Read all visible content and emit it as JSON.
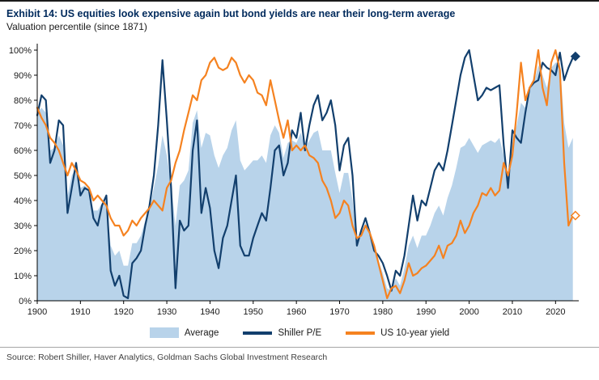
{
  "header": {
    "title": "Exhibit 14: US equities look expensive again but bond yields are near their long-term average",
    "subtitle": "Valuation percentile (since 1871)"
  },
  "legend": {
    "items": [
      {
        "label": "Average",
        "type": "area",
        "color": "#b8d3ea"
      },
      {
        "label": "Shiller P/E",
        "type": "line",
        "color": "#123f6d"
      },
      {
        "label": "US 10-year yield",
        "type": "line",
        "color": "#f58220"
      }
    ]
  },
  "footer": {
    "source": "Source: Robert Shiller, Haver Analytics, Goldman Sachs Global Investment Research"
  },
  "chart_data": {
    "type": "line",
    "title": "Exhibit 14: US equities look expensive again but bond yields are near their long-term average",
    "subtitle": "Valuation percentile (since 1871)",
    "xlabel": "",
    "ylabel": "Valuation percentile",
    "xlim": [
      1900,
      2025
    ],
    "ylim": [
      0,
      100
    ],
    "x_ticks": [
      1900,
      1910,
      1920,
      1930,
      1940,
      1950,
      1960,
      1970,
      1980,
      1990,
      2000,
      2010,
      2020
    ],
    "y_ticks": [
      0,
      10,
      20,
      30,
      40,
      50,
      60,
      70,
      80,
      90,
      100
    ],
    "y_tick_suffix": "%",
    "grid": false,
    "legend_position": "bottom",
    "x": [
      1900,
      1901,
      1902,
      1903,
      1904,
      1905,
      1906,
      1907,
      1908,
      1909,
      1910,
      1911,
      1912,
      1913,
      1914,
      1915,
      1916,
      1917,
      1918,
      1919,
      1920,
      1921,
      1922,
      1923,
      1924,
      1925,
      1926,
      1927,
      1928,
      1929,
      1930,
      1931,
      1932,
      1933,
      1934,
      1935,
      1936,
      1937,
      1938,
      1939,
      1940,
      1941,
      1942,
      1943,
      1944,
      1945,
      1946,
      1947,
      1948,
      1949,
      1950,
      1951,
      1952,
      1953,
      1954,
      1955,
      1956,
      1957,
      1958,
      1959,
      1960,
      1961,
      1962,
      1963,
      1964,
      1965,
      1966,
      1967,
      1968,
      1969,
      1970,
      1971,
      1972,
      1973,
      1974,
      1975,
      1976,
      1977,
      1978,
      1979,
      1980,
      1981,
      1982,
      1983,
      1984,
      1985,
      1986,
      1987,
      1988,
      1989,
      1990,
      1991,
      1992,
      1993,
      1994,
      1995,
      1996,
      1997,
      1998,
      1999,
      2000,
      2001,
      2002,
      2003,
      2004,
      2005,
      2006,
      2007,
      2008,
      2009,
      2010,
      2011,
      2012,
      2013,
      2014,
      2015,
      2016,
      2017,
      2018,
      2019,
      2020,
      2021,
      2022,
      2023,
      2024
    ],
    "series": [
      {
        "name": "Average",
        "style": "area",
        "color": "#b8d3ea",
        "values": [
          75,
          77,
          75,
          60,
          61,
          66,
          62,
          42,
          50,
          53,
          45,
          46,
          44,
          36,
          36,
          39,
          40,
          22,
          18,
          20,
          14,
          14,
          23,
          23,
          26,
          32,
          37,
          45,
          54,
          66,
          58,
          46,
          30,
          46,
          48,
          52,
          71,
          76,
          61,
          67,
          66,
          58,
          53,
          58,
          61,
          68,
          72,
          56,
          52,
          54,
          56,
          56,
          58,
          55,
          66,
          70,
          67,
          57,
          63,
          64,
          63,
          67,
          61,
          64,
          67,
          68,
          60,
          60,
          60,
          51,
          43,
          51,
          51,
          40,
          23,
          27,
          31,
          27,
          21,
          16,
          11,
          5,
          4,
          9,
          6,
          13,
          22,
          26,
          21,
          26,
          26,
          30,
          35,
          38,
          34,
          41,
          46,
          53,
          61,
          62,
          65,
          62,
          59,
          62,
          63,
          64,
          63,
          65,
          58,
          47,
          63,
          70,
          79,
          77,
          85,
          87,
          94,
          90,
          85,
          93,
          95,
          95,
          71,
          61,
          65
        ]
      },
      {
        "name": "Shiller P/E",
        "style": "line",
        "color": "#123f6d",
        "values": [
          74,
          82,
          80,
          55,
          60,
          72,
          70,
          35,
          45,
          55,
          42,
          45,
          44,
          33,
          30,
          38,
          42,
          12,
          6,
          10,
          2,
          1,
          15,
          17,
          20,
          30,
          38,
          50,
          70,
          96,
          72,
          45,
          5,
          32,
          28,
          30,
          60,
          72,
          35,
          45,
          37,
          20,
          13,
          25,
          30,
          40,
          50,
          22,
          18,
          18,
          25,
          30,
          35,
          32,
          45,
          60,
          62,
          50,
          55,
          68,
          65,
          75,
          60,
          70,
          78,
          82,
          72,
          75,
          80,
          70,
          52,
          62,
          65,
          50,
          22,
          28,
          33,
          27,
          20,
          18,
          15,
          10,
          4,
          12,
          10,
          18,
          30,
          42,
          32,
          40,
          38,
          45,
          52,
          55,
          52,
          60,
          70,
          80,
          90,
          97,
          100,
          90,
          80,
          82,
          85,
          84,
          85,
          86,
          62,
          45,
          68,
          65,
          63,
          75,
          85,
          87,
          88,
          95,
          93,
          92,
          90,
          99,
          88,
          93,
          97
        ]
      },
      {
        "name": "US 10-year yield",
        "style": "line",
        "color": "#f58220",
        "values": [
          77,
          73,
          70,
          65,
          63,
          60,
          55,
          50,
          55,
          52,
          48,
          47,
          45,
          40,
          42,
          40,
          38,
          33,
          30,
          30,
          26,
          28,
          32,
          30,
          33,
          35,
          37,
          40,
          38,
          36,
          45,
          48,
          55,
          60,
          68,
          75,
          82,
          80,
          88,
          90,
          95,
          97,
          93,
          92,
          93,
          97,
          95,
          90,
          87,
          90,
          88,
          83,
          82,
          78,
          88,
          80,
          72,
          65,
          72,
          60,
          62,
          60,
          62,
          58,
          57,
          55,
          48,
          45,
          40,
          33,
          35,
          40,
          38,
          30,
          25,
          26,
          30,
          27,
          22,
          15,
          8,
          1,
          5,
          6,
          3,
          8,
          15,
          10,
          11,
          13,
          14,
          16,
          18,
          22,
          17,
          22,
          23,
          26,
          32,
          27,
          30,
          35,
          38,
          43,
          42,
          45,
          42,
          44,
          55,
          50,
          58,
          75,
          95,
          80,
          85,
          88,
          100,
          85,
          78,
          95,
          100,
          92,
          55,
          30,
          34
        ]
      }
    ],
    "end_markers": [
      {
        "series": "Shiller P/E",
        "x": 2024.6,
        "y": 97.5,
        "shape": "diamond",
        "fill": "#123f6d",
        "stroke": "#123f6d"
      },
      {
        "series": "US 10-year yield",
        "x": 2024.6,
        "y": 34,
        "shape": "diamond-open",
        "fill": "#ffffff",
        "stroke": "#f58220"
      }
    ]
  }
}
